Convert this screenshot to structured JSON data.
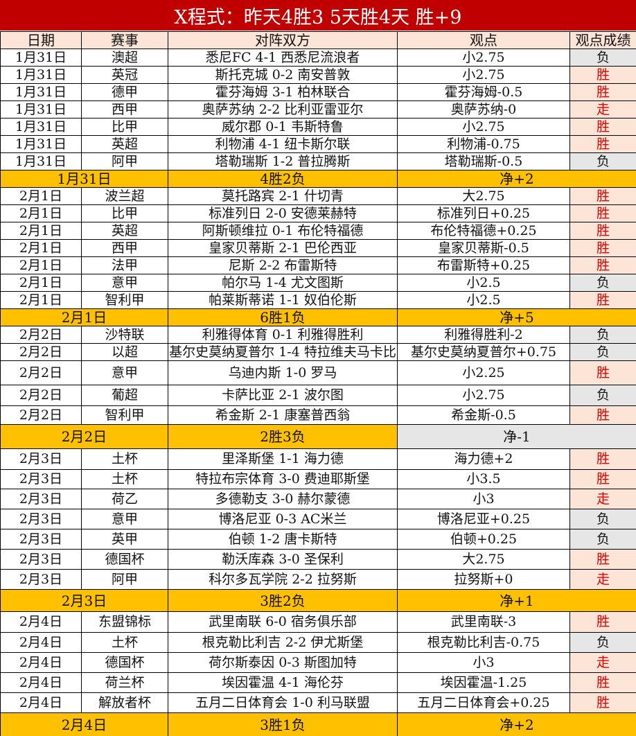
{
  "title": "X程式：昨天4胜3 5天胜4天 胜+9",
  "headers": [
    "日期",
    "赛事",
    "对阵双方",
    "观点",
    "观点成绩"
  ],
  "colors": {
    "title_bg": "#C00000",
    "header_bg": "#FCE4D6",
    "win_bg": "#FCE4D6",
    "win_text": "#E00000",
    "loss_bg": "#E7E6E6",
    "summary_bg": "#FFC000"
  },
  "groups": [
    {
      "rows": [
        [
          "1月31日",
          "澳超",
          "悉尼FC 4-1 西悉尼流浪者",
          "小2.75",
          "负"
        ],
        [
          "1月31日",
          "英冠",
          "斯托克城 0-2 南安普敦",
          "小2.75",
          "胜"
        ],
        [
          "1月31日",
          "德甲",
          "霍芬海姆 3-1 柏林联合",
          "霍芬海姆-0.5",
          "胜"
        ],
        [
          "1月31日",
          "西甲",
          "奥萨苏纳 2-2 比利亚雷亚尔",
          "奥萨苏纳-0",
          "走"
        ],
        [
          "1月31日",
          "比甲",
          "威尔郡 0-1 韦斯特鲁",
          "小2.75",
          "胜"
        ],
        [
          "1月31日",
          "英超",
          "利物浦 4-1 纽卡斯尔联",
          "利物浦-0.75",
          "胜"
        ],
        [
          "1月31日",
          "阿甲",
          "塔勒瑞斯 1-2 普拉腾斯",
          "塔勒瑞斯-0.5",
          "负"
        ]
      ],
      "summary": [
        "1月31日",
        "4胜2负",
        "净+2"
      ]
    },
    {
      "rows": [
        [
          "2月1日",
          "波兰超",
          "莫托路宾 2-1 什切青",
          "大2.75",
          "胜"
        ],
        [
          "2月1日",
          "比甲",
          "标准列日 2-0 安德莱赫特",
          "标准列日+0.25",
          "胜"
        ],
        [
          "2月1日",
          "英超",
          "阿斯顿维拉 0-1 布伦特福德",
          "布伦特福德+0.25",
          "胜"
        ],
        [
          "2月1日",
          "西甲",
          "皇家贝蒂斯 2-1 巴伦西亚",
          "皇家贝蒂斯-0.5",
          "胜"
        ],
        [
          "2月1日",
          "法甲",
          "尼斯 2-2 布雷斯特",
          "布雷斯特+0.25",
          "胜"
        ],
        [
          "2月1日",
          "意甲",
          "帕尔马 1-4 尤文图斯",
          "小2.5",
          "负"
        ],
        [
          "2月1日",
          "智利甲",
          "帕莱斯蒂诺 1-1 奴伯伦斯",
          "小2.5",
          "胜"
        ]
      ],
      "summary": [
        "2月1日",
        "6胜1负",
        "净+5"
      ]
    },
    {
      "rows": [
        [
          "2月2日",
          "沙特联",
          "利雅得体育 0-1 利雅得胜利",
          "利雅得胜利-2",
          "负"
        ],
        [
          "2月2日",
          "以超",
          "基尔史莫纳夏普尔 1-4 特拉维夫马卡比",
          "基尔史莫纳夏普尔+0.75",
          "负"
        ],
        [
          "2月2日",
          "意甲",
          "乌迪内斯 1-0 罗马",
          "小2.25",
          "胜"
        ],
        [
          "2月2日",
          "葡超",
          "卡萨比亚 2-1 波尔图",
          "小2.75",
          "负"
        ],
        [
          "2月2日",
          "智利甲",
          "希金斯 2-1 康塞普西翁",
          "希金斯-0.5",
          "胜"
        ]
      ],
      "summary": [
        "2月2日",
        "2胜3负",
        "净-1"
      ]
    },
    {
      "rows": [
        [
          "2月3日",
          "土杯",
          "里泽斯堡 1-1 海力德",
          "海力德+2",
          "胜"
        ],
        [
          "2月3日",
          "土杯",
          "特拉布宗体育 3-0 费迪耶斯堡",
          "小3.5",
          "胜"
        ],
        [
          "2月3日",
          "荷乙",
          "多德勒支 3-0 赫尔蒙德",
          "小3",
          "走"
        ],
        [
          "2月3日",
          "意甲",
          "博洛尼亚 0-3 AC米兰",
          "博洛尼亚+0.25",
          "负"
        ],
        [
          "2月3日",
          "英甲",
          "伯顿 1-2 唐卡斯特",
          "伯顿+0.25",
          "负"
        ],
        [
          "2月3日",
          "德国杯",
          "勒沃库森 3-0 圣保利",
          "大2.75",
          "胜"
        ],
        [
          "2月3日",
          "阿甲",
          "科尔多瓦学院 2-2 拉努斯",
          "拉努斯+0",
          "走"
        ]
      ],
      "summary": [
        "2月3日",
        "3胜2负",
        "净+1"
      ]
    },
    {
      "rows": [
        [
          "2月4日",
          "东盟锦标",
          "武里南联 6-0 宿务俱乐部",
          "武里南联-3",
          "胜"
        ],
        [
          "2月4日",
          "土杯",
          "根克勒比利吉 2-2 伊尤斯堡",
          "根克勒比利吉-0.75",
          "负"
        ],
        [
          "2月4日",
          "德国杯",
          "荷尔斯泰因 0-3 斯图加特",
          "小3",
          "走"
        ],
        [
          "2月4日",
          "荷兰杯",
          "埃因霍温 4-1 海伦芬",
          "埃因霍温-1.25",
          "胜"
        ],
        [
          "2月4日",
          "解放者杯",
          "五月二日体育会 1-0 利马联盟",
          "五月二日体育会+0.25",
          "胜"
        ]
      ],
      "summary": [
        "2月4日",
        "3胜1负",
        "净+2"
      ]
    }
  ]
}
